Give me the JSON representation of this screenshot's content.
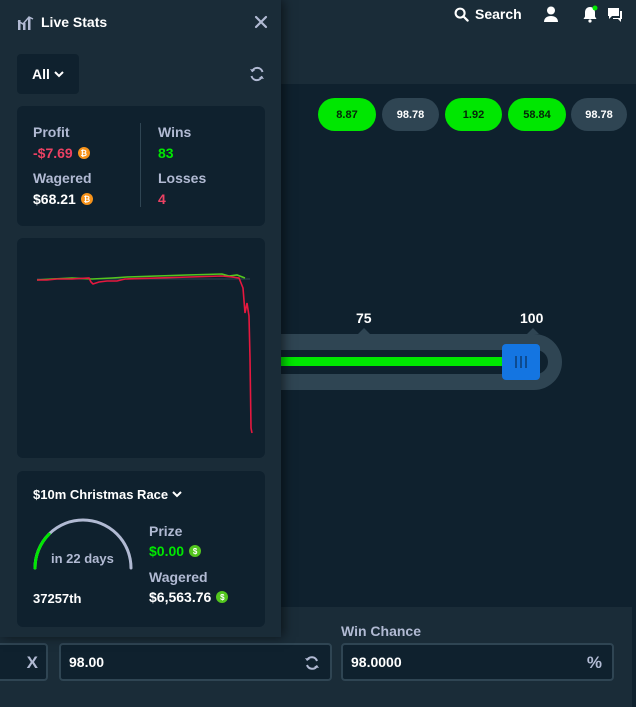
{
  "header": {
    "search_label": "Search"
  },
  "results": [
    {
      "value": "8.87",
      "win": true
    },
    {
      "value": "98.78",
      "win": false
    },
    {
      "value": "1.92",
      "win": true
    },
    {
      "value": "58.84",
      "win": true
    },
    {
      "value": "98.78",
      "win": false
    }
  ],
  "slider": {
    "tick_75": "75",
    "tick_100": "100",
    "value": 98
  },
  "bet": {
    "multiplier_suffix": "X",
    "target_value": "98.00",
    "win_chance_label": "Win Chance",
    "win_chance_value": "98.0000",
    "win_chance_suffix": "%"
  },
  "live_stats": {
    "title": "Live Stats",
    "filter": "All",
    "profit_label": "Profit",
    "profit_value": "-$7.69",
    "wagered_label": "Wagered",
    "wagered_value": "$68.21",
    "wins_label": "Wins",
    "wins_value": "83",
    "losses_label": "Losses",
    "losses_value": "4",
    "coin_icon": "bitcoin-icon"
  },
  "race": {
    "title": "$10m Christmas Race",
    "time_left": "in 22 days",
    "rank": "37257th",
    "prize_label": "Prize",
    "prize_value": "$0.00",
    "wagered_label": "Wagered",
    "wagered_value": "$6,563.76",
    "progress": 0.25
  },
  "colors": {
    "win": "#00e701",
    "loss": "#ed4163",
    "accent": "#1475e1"
  }
}
